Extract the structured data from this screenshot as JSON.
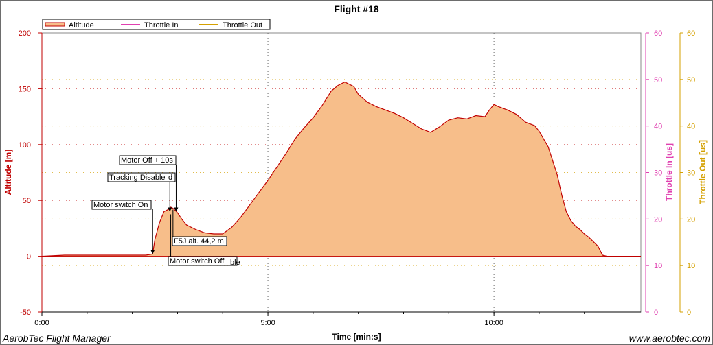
{
  "footer": {
    "left": "AerobTec Flight Manager",
    "right": "www.aerobtec.com"
  },
  "colors": {
    "altitude_line": "#c00000",
    "altitude_fill": "#f7be8a",
    "throttle_in": "#e040b0",
    "throttle_out": "#d4a000",
    "grid": "#999999"
  },
  "chart_data": {
    "type": "area",
    "title": "Flight #18",
    "xlabel": "Time [min:s]",
    "ylabel": "Altitude [m]",
    "y2label": "Throttle In [us]",
    "y3label": "Throttle Out [us]",
    "xlim": [
      0,
      13.25
    ],
    "ylim": [
      -50,
      200
    ],
    "y2lim": [
      0,
      60
    ],
    "y3lim": [
      0,
      60
    ],
    "x_ticks": [
      {
        "v": 0,
        "label": "0:00"
      },
      {
        "v": 5,
        "label": "5:00"
      },
      {
        "v": 10,
        "label": "10:00"
      }
    ],
    "y_ticks": [
      -50,
      0,
      50,
      100,
      150,
      200
    ],
    "y2_ticks": [
      0,
      10,
      20,
      30,
      40,
      50,
      60
    ],
    "y3_ticks": [
      0,
      10,
      20,
      30,
      40,
      50,
      60
    ],
    "grid": true,
    "legend_position": "top-left",
    "series": [
      {
        "name": "Altitude",
        "x": [
          0,
          0.5,
          1.0,
          1.5,
          2.0,
          2.3,
          2.45,
          2.5,
          2.6,
          2.7,
          2.8,
          2.85,
          2.9,
          3.0,
          3.1,
          3.2,
          3.4,
          3.6,
          3.8,
          4.0,
          4.2,
          4.4,
          4.6,
          4.8,
          5.0,
          5.2,
          5.4,
          5.6,
          5.8,
          6.0,
          6.2,
          6.4,
          6.55,
          6.7,
          6.8,
          6.9,
          7.0,
          7.2,
          7.4,
          7.6,
          7.8,
          8.0,
          8.2,
          8.4,
          8.6,
          8.8,
          9.0,
          9.2,
          9.4,
          9.6,
          9.8,
          9.9,
          10.0,
          10.1,
          10.3,
          10.5,
          10.7,
          10.9,
          11.0,
          11.2,
          11.4,
          11.5,
          11.6,
          11.7,
          11.8,
          11.9,
          12.0,
          12.1,
          12.2,
          12.3,
          12.4,
          12.5,
          12.7,
          13.0,
          13.25
        ],
        "values": [
          0,
          1,
          1,
          1,
          1,
          1,
          2,
          15,
          30,
          40,
          42,
          44,
          43,
          39,
          33,
          28,
          24,
          21,
          20,
          20,
          26,
          35,
          46,
          57,
          68,
          80,
          92,
          105,
          115,
          124,
          135,
          148,
          153,
          156,
          154,
          152,
          145,
          138,
          134,
          131,
          128,
          124,
          119,
          114,
          111,
          116,
          122,
          124,
          123,
          126,
          125,
          131,
          136,
          134,
          131,
          127,
          120,
          117,
          112,
          98,
          73,
          55,
          40,
          32,
          27,
          24,
          20,
          17,
          13,
          9,
          1,
          0,
          0,
          0,
          0
        ]
      },
      {
        "name": "Throttle In",
        "x": [],
        "values": []
      },
      {
        "name": "Throttle Out",
        "x": [],
        "values": []
      }
    ],
    "annotations": [
      {
        "text": "Motor switch On",
        "x": 2.45,
        "y": 2
      },
      {
        "text": "Tracking Disable",
        "x": 2.83,
        "y": 40,
        "suffix": "d"
      },
      {
        "text": "Motor Off + 10s",
        "x": 2.97,
        "y": 40
      },
      {
        "text": "F5J alt. 44,2 m",
        "x": 2.9,
        "y": 44.2
      },
      {
        "text": "Motor switch Off",
        "x": 2.85,
        "y": 40,
        "suffix": "ble"
      }
    ]
  }
}
